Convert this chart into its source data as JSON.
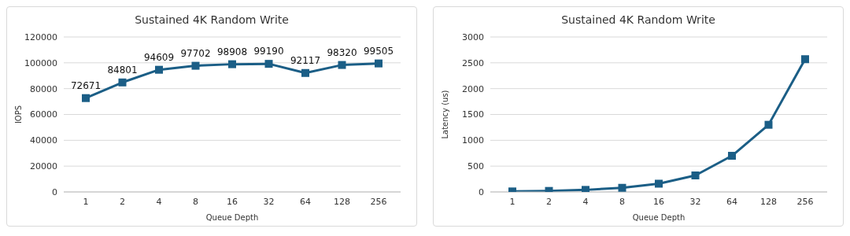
{
  "chart_data": [
    {
      "type": "line",
      "title": "Sustained 4K Random Write",
      "xlabel": "Queue Depth",
      "ylabel": "IOPS",
      "categories": [
        "1",
        "2",
        "4",
        "8",
        "16",
        "32",
        "64",
        "128",
        "256"
      ],
      "series": [
        {
          "color": "#1b5e86",
          "values": [
            72671,
            84801,
            94609,
            97702,
            98908,
            99190,
            92117,
            98320,
            99505
          ]
        }
      ],
      "ylim": [
        0,
        120000
      ],
      "yticks": [
        0,
        20000,
        40000,
        60000,
        80000,
        100000,
        120000
      ],
      "grid": "y",
      "marker": "square",
      "data_labels": true
    },
    {
      "type": "line",
      "title": "Sustained 4K Random Write",
      "xlabel": "Queue Depth",
      "ylabel": "Latency (us)",
      "categories": [
        "1",
        "2",
        "4",
        "8",
        "16",
        "32",
        "64",
        "128",
        "256"
      ],
      "series": [
        {
          "color": "#1b5e86",
          "values": [
            10,
            20,
            40,
            80,
            160,
            320,
            700,
            1300,
            2570
          ]
        }
      ],
      "ylim": [
        0,
        3000
      ],
      "yticks": [
        0,
        500,
        1000,
        1500,
        2000,
        2500,
        3000
      ],
      "grid": "y",
      "marker": "square"
    }
  ]
}
